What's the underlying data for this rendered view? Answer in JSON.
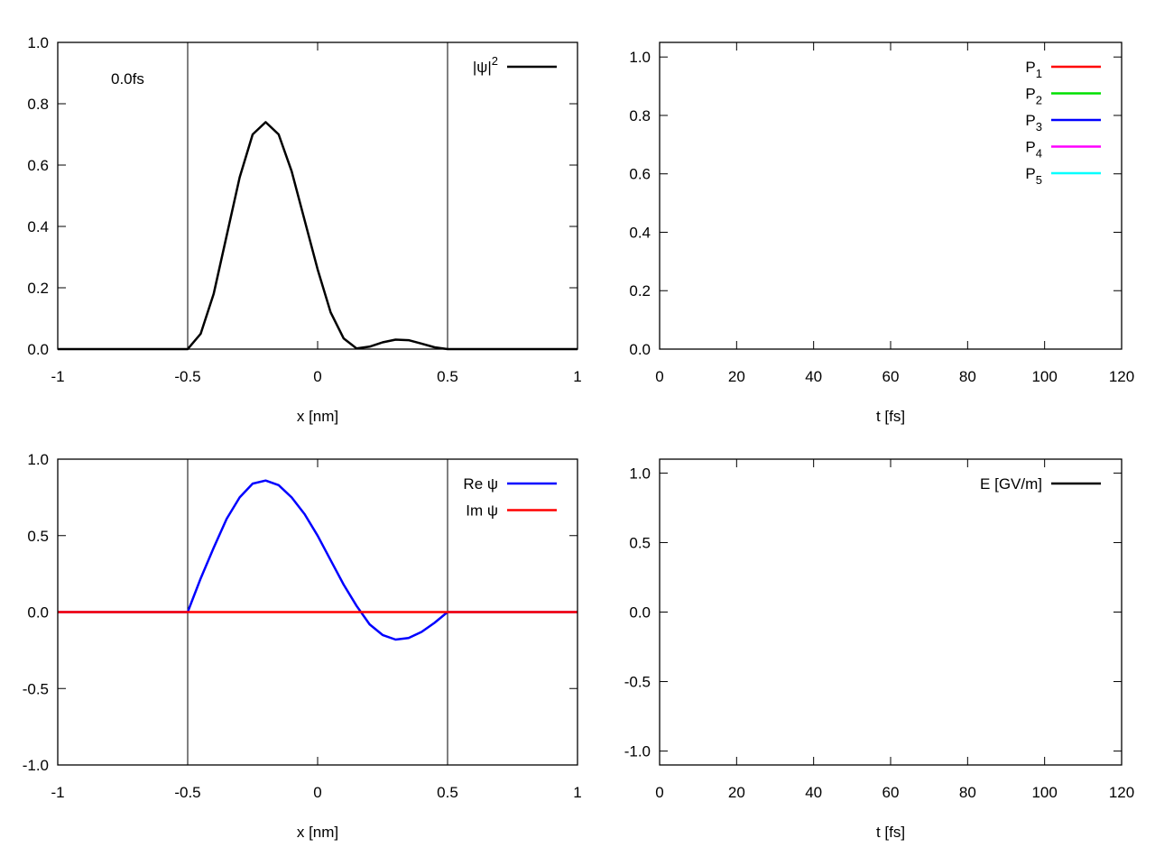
{
  "chart_data": [
    {
      "id": "density",
      "type": "line",
      "xlabel": "x [nm]",
      "ylabel": "",
      "xlim": [
        -1,
        1
      ],
      "ylim": [
        0,
        1
      ],
      "xticks": [
        -1,
        -0.5,
        0,
        0.5,
        1
      ],
      "xtick_labels": [
        "-1",
        "-0.5",
        "0",
        "0.5",
        "1"
      ],
      "yticks": [
        0,
        0.2,
        0.4,
        0.6,
        0.8,
        1
      ],
      "ytick_labels": [
        "0.0",
        "0.2",
        "0.4",
        "0.6",
        "0.8",
        "1.0"
      ],
      "vlines": [
        -0.5,
        0.5
      ],
      "annotation": "0.0fs",
      "legend_position": "top-right",
      "grid": false,
      "series": [
        {
          "name": "|ψ|²",
          "legend_main": "|ψ|",
          "legend_sup": "2",
          "color": "#000000",
          "x": [
            -1,
            -0.5,
            -0.45,
            -0.4,
            -0.35,
            -0.3,
            -0.25,
            -0.2,
            -0.15,
            -0.1,
            -0.05,
            0,
            0.05,
            0.1,
            0.15,
            0.2,
            0.25,
            0.3,
            0.35,
            0.4,
            0.45,
            0.5,
            1
          ],
          "y": [
            0,
            0,
            0.05,
            0.18,
            0.37,
            0.56,
            0.7,
            0.74,
            0.7,
            0.58,
            0.42,
            0.26,
            0.12,
            0.035,
            0.002,
            0.008,
            0.022,
            0.031,
            0.029,
            0.018,
            0.006,
            0,
            0
          ]
        }
      ]
    },
    {
      "id": "populations",
      "type": "line",
      "xlabel": "t [fs]",
      "ylabel": "",
      "xlim": [
        0,
        120
      ],
      "ylim": [
        0,
        1.05
      ],
      "xticks": [
        0,
        20,
        40,
        60,
        80,
        100,
        120
      ],
      "xtick_labels": [
        "0",
        "20",
        "40",
        "60",
        "80",
        "100",
        "120"
      ],
      "yticks": [
        0,
        0.2,
        0.4,
        0.6,
        0.8,
        1
      ],
      "ytick_labels": [
        "0.0",
        "0.2",
        "0.4",
        "0.6",
        "0.8",
        "1.0"
      ],
      "legend_position": "top-right",
      "grid": false,
      "series": [
        {
          "name": "P1",
          "legend_main": "P",
          "legend_sub": "1",
          "color": "#ff0000",
          "x": [],
          "y": []
        },
        {
          "name": "P2",
          "legend_main": "P",
          "legend_sub": "2",
          "color": "#00e000",
          "x": [],
          "y": []
        },
        {
          "name": "P3",
          "legend_main": "P",
          "legend_sub": "3",
          "color": "#0000ff",
          "x": [],
          "y": []
        },
        {
          "name": "P4",
          "legend_main": "P",
          "legend_sub": "4",
          "color": "#ff00ff",
          "x": [],
          "y": []
        },
        {
          "name": "P5",
          "legend_main": "P",
          "legend_sub": "5",
          "color": "#00ffff",
          "x": [],
          "y": []
        }
      ]
    },
    {
      "id": "wavefunction",
      "type": "line",
      "xlabel": "x [nm]",
      "ylabel": "",
      "xlim": [
        -1,
        1
      ],
      "ylim": [
        -1,
        1
      ],
      "xticks": [
        -1,
        -0.5,
        0,
        0.5,
        1
      ],
      "xtick_labels": [
        "-1",
        "-0.5",
        "0",
        "0.5",
        "1"
      ],
      "yticks": [
        -1,
        -0.5,
        0,
        0.5,
        1
      ],
      "ytick_labels": [
        "-1.0",
        "-0.5",
        "0.0",
        "0.5",
        "1.0"
      ],
      "vlines": [
        -0.5,
        0.5
      ],
      "legend_position": "top-right",
      "grid": false,
      "series": [
        {
          "name": "Re ψ",
          "legend_main": "Re ψ",
          "color": "#0000ff",
          "x": [
            -1,
            -0.5,
            -0.45,
            -0.4,
            -0.35,
            -0.3,
            -0.25,
            -0.2,
            -0.15,
            -0.1,
            -0.05,
            0,
            0.05,
            0.1,
            0.15,
            0.2,
            0.25,
            0.3,
            0.35,
            0.4,
            0.45,
            0.5,
            1
          ],
          "y": [
            0,
            0,
            0.22,
            0.42,
            0.61,
            0.75,
            0.84,
            0.86,
            0.83,
            0.75,
            0.64,
            0.5,
            0.34,
            0.18,
            0.04,
            -0.08,
            -0.15,
            -0.18,
            -0.17,
            -0.13,
            -0.07,
            0,
            0
          ]
        },
        {
          "name": "Im ψ",
          "legend_main": "Im ψ",
          "color": "#ff0000",
          "x": [
            -1,
            1
          ],
          "y": [
            0,
            0
          ]
        }
      ]
    },
    {
      "id": "field",
      "type": "line",
      "xlabel": "t [fs]",
      "ylabel": "",
      "xlim": [
        0,
        120
      ],
      "ylim": [
        -1.1,
        1.1
      ],
      "xticks": [
        0,
        20,
        40,
        60,
        80,
        100,
        120
      ],
      "xtick_labels": [
        "0",
        "20",
        "40",
        "60",
        "80",
        "100",
        "120"
      ],
      "yticks": [
        -1,
        -0.5,
        0,
        0.5,
        1
      ],
      "ytick_labels": [
        "-1.0",
        "-0.5",
        "0.0",
        "0.5",
        "1.0"
      ],
      "legend_position": "top-right",
      "grid": false,
      "series": [
        {
          "name": "E [GV/m]",
          "legend_main": "E [GV/m]",
          "color": "#000000",
          "x": [],
          "y": []
        }
      ]
    }
  ]
}
